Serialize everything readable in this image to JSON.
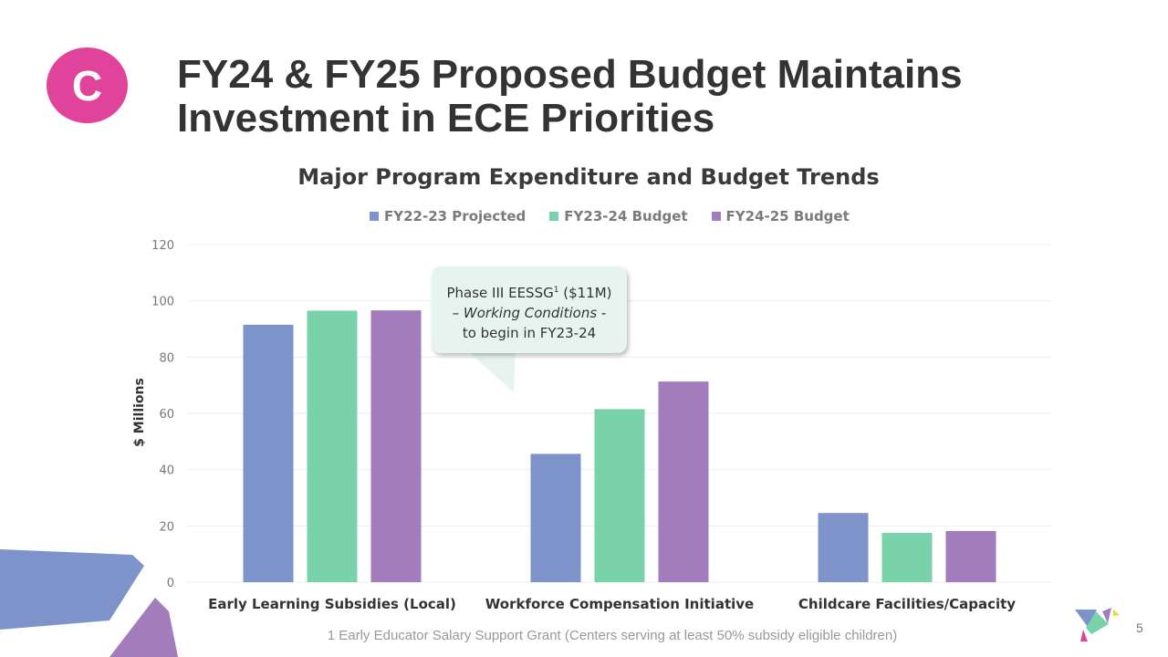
{
  "badge": "C",
  "title_line1": "FY24 & FY25 Proposed Budget Maintains",
  "title_line2": "Investment in ECE Priorities",
  "footnote": "1 Early Educator Salary Support Grant (Centers serving at least 50% subsidy eligible children)",
  "page_number": "5",
  "callout": {
    "line1": "Phase III EESSG",
    "sup": "1",
    "line1b": " ($11M)",
    "line2": "– Working Conditions -",
    "line3": "to begin in FY23-24"
  },
  "chart_data": {
    "type": "bar",
    "title": "Major Program Expenditure and Budget Trends",
    "xlabel": "",
    "ylabel": "$ Millions",
    "ylim": [
      0,
      120
    ],
    "yticks": [
      "0",
      "20",
      "40",
      "60",
      "80",
      "100",
      "120"
    ],
    "grid": true,
    "legend_position": "top",
    "categories": [
      "Early Learning Subsidies (Local)",
      "Workforce Compensation Initiative",
      "Childcare Facilities/Capacity"
    ],
    "series": [
      {
        "name": "FY22-23 Projected",
        "color": "#7f93cb",
        "values": [
          91.5,
          45.6,
          24.6
        ]
      },
      {
        "name": "FY23-24 Budget",
        "color": "#79d2aa",
        "values": [
          96.5,
          61.5,
          17.5
        ]
      },
      {
        "name": "FY24-25 Budget",
        "color": "#a37cbb",
        "values": [
          96.6,
          71.3,
          18.2
        ]
      }
    ]
  }
}
